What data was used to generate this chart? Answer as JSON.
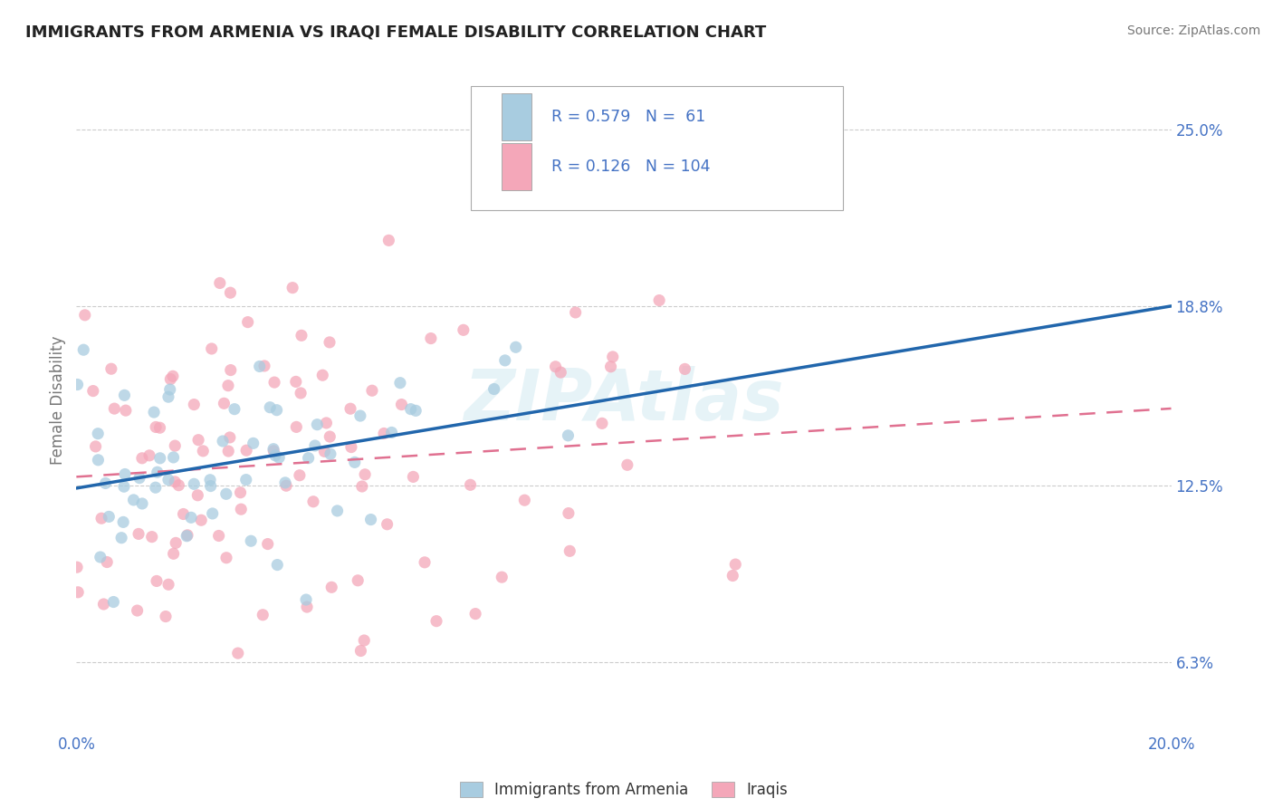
{
  "title": "IMMIGRANTS FROM ARMENIA VS IRAQI FEMALE DISABILITY CORRELATION CHART",
  "source_text": "Source: ZipAtlas.com",
  "ylabel": "Female Disability",
  "legend_label_1": "Immigrants from Armenia",
  "legend_label_2": "Iraqis",
  "R1": 0.579,
  "N1": 61,
  "R2": 0.126,
  "N2": 104,
  "color1": "#a8cce0",
  "color2": "#f4a7b9",
  "trendline1_color": "#2166ac",
  "trendline2_color": "#e07090",
  "xlim": [
    0.0,
    0.2
  ],
  "ylim": [
    0.04,
    0.27
  ],
  "ytick_labels_right": [
    "6.3%",
    "12.5%",
    "18.8%",
    "25.0%"
  ],
  "ytick_vals_right": [
    0.063,
    0.125,
    0.188,
    0.25
  ],
  "watermark": "ZIPAtlas",
  "title_fontsize": 13,
  "axis_label_color": "#4472c4",
  "tick_label_color": "#4472c4",
  "grid_color": "#cccccc",
  "background_color": "#ffffff",
  "legend_text_color": "#4472c4",
  "legend_R_N_color": "#4472c4"
}
